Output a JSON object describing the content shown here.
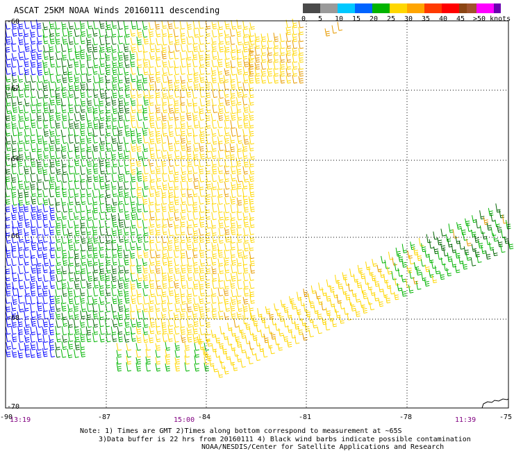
{
  "title": "ASCAT 25KM NOAA Winds 20160111 descending",
  "legend": {
    "labels": [
      "0",
      "5",
      "10",
      "15",
      "20",
      "25",
      "30",
      "35",
      "40",
      "45",
      ">50 knots"
    ],
    "colors": [
      "#4a4a4a",
      "#9a9a9a",
      "#00c8ff",
      "#0064ff",
      "#00b400",
      "#ffd700",
      "#ffa500",
      "#ff3a00",
      "#ff0000",
      "#8b4513",
      "#a0522d",
      "#ff00ff",
      "#6a00b0"
    ]
  },
  "axes": {
    "lat_labels": [
      "-60",
      "-62",
      "-64",
      "-66",
      "-68",
      "-70"
    ],
    "lon_labels": [
      "-90",
      "-87",
      "-84",
      "-81",
      "-78",
      "-75"
    ]
  },
  "times": [
    "13:19",
    "15:00",
    "11:39"
  ],
  "notes": {
    "line1": "Note: 1) Times are GMT 2)Times along bottom correspond to measurement at ~65S",
    "line2": "3)Data buffer is 22 hrs from 20160111 4) Black wind barbs indicate possible contamination",
    "line3": "NOAA/NESDIS/Center for Satellite Applications and Research"
  },
  "colors": {
    "time_label": "#800080",
    "grid": "#000000"
  }
}
